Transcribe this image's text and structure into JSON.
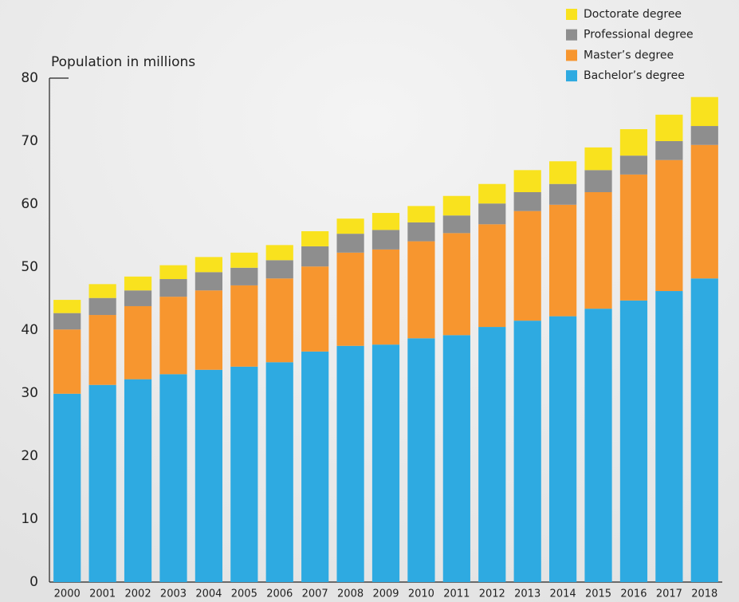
{
  "chart_data": {
    "type": "stacked-bar",
    "y_axis_label": "Population in millions",
    "categories": [
      "2000",
      "2001",
      "2002",
      "2003",
      "2004",
      "2005",
      "2006",
      "2007",
      "2008",
      "2009",
      "2010",
      "2011",
      "2012",
      "2013",
      "2014",
      "2015",
      "2016",
      "2017",
      "2018"
    ],
    "series": [
      {
        "name": "Bachelor’s degree",
        "color": "#2eaae1",
        "values": [
          29.9,
          31.3,
          32.2,
          33.0,
          33.7,
          34.2,
          34.9,
          36.6,
          37.5,
          37.7,
          38.7,
          39.2,
          40.5,
          41.5,
          42.2,
          43.4,
          44.7,
          46.2,
          48.2
        ]
      },
      {
        "name": "Master’s degree",
        "color": "#f7962f",
        "values": [
          10.2,
          11.1,
          11.6,
          12.3,
          12.6,
          12.9,
          13.3,
          13.5,
          14.8,
          15.1,
          15.4,
          16.2,
          16.3,
          17.4,
          17.7,
          18.5,
          20.0,
          20.8,
          21.2
        ]
      },
      {
        "name": "Professional degree",
        "color": "#8e8e8e",
        "values": [
          2.6,
          2.7,
          2.5,
          2.8,
          2.9,
          2.8,
          2.9,
          3.2,
          3.0,
          3.1,
          3.0,
          2.8,
          3.3,
          3.0,
          3.3,
          3.5,
          3.0,
          3.0,
          3.0
        ]
      },
      {
        "name": "Doctorate degree",
        "color": "#f9e21e",
        "values": [
          2.1,
          2.2,
          2.2,
          2.2,
          2.4,
          2.4,
          2.4,
          2.4,
          2.4,
          2.7,
          2.6,
          3.1,
          3.1,
          3.5,
          3.6,
          3.6,
          4.2,
          4.2,
          4.6
        ]
      }
    ],
    "ylim": [
      0,
      80
    ],
    "yticks": [
      0,
      10,
      20,
      30,
      40,
      50,
      60,
      70,
      80
    ],
    "grid": false,
    "legend": "top-right"
  }
}
